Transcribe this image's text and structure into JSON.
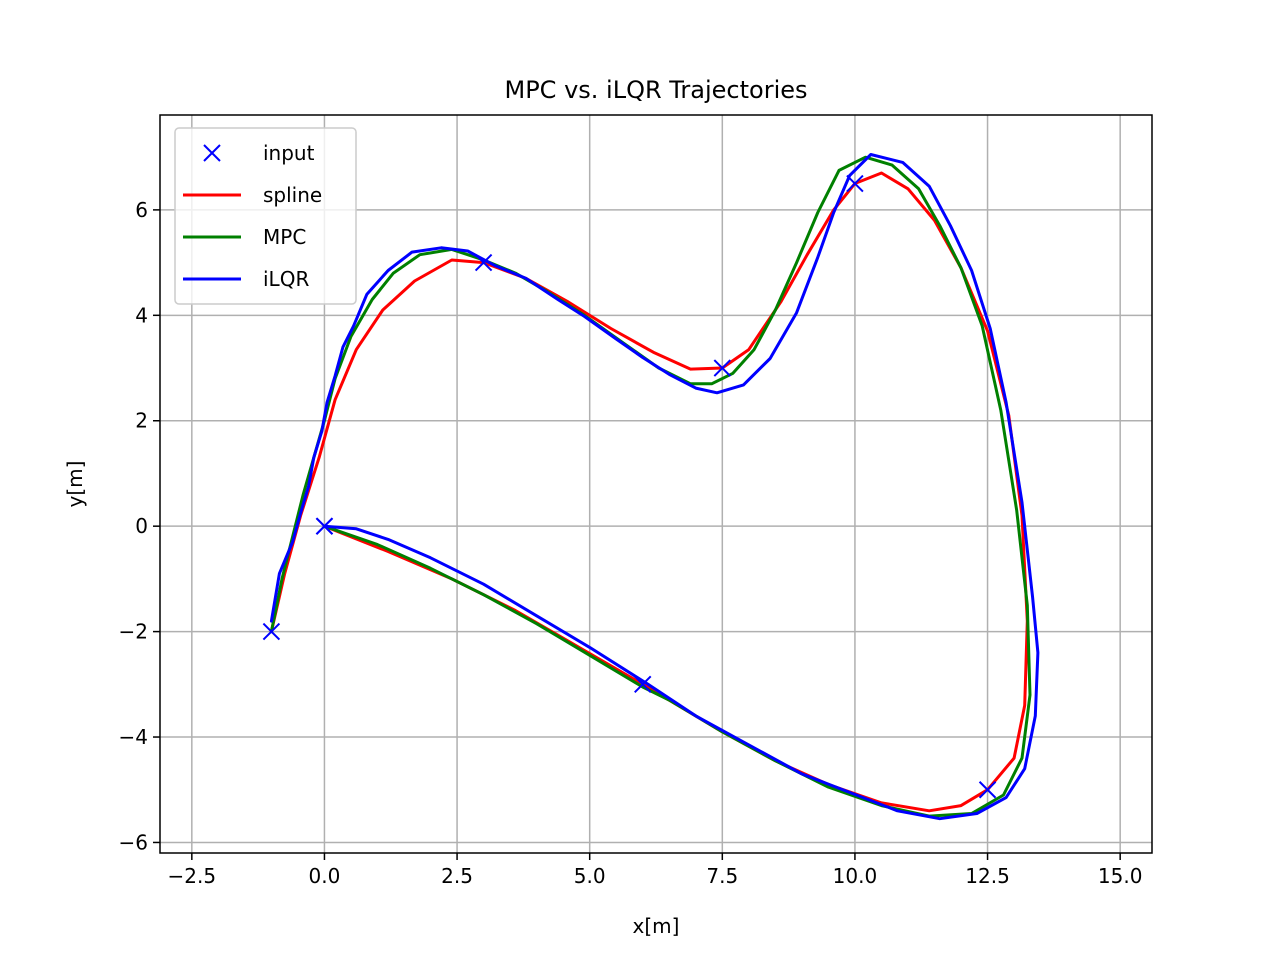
{
  "chart_data": {
    "type": "line",
    "title": "MPC vs. iLQR Trajectories",
    "xlabel": "x[m]",
    "ylabel": "y[m]",
    "xlim": [
      -3.1,
      15.6
    ],
    "ylim": [
      -6.2,
      7.8
    ],
    "xticks": [
      -2.5,
      0.0,
      2.5,
      5.0,
      7.5,
      10.0,
      12.5,
      15.0
    ],
    "xtick_labels": [
      "−2.5",
      "0.0",
      "2.5",
      "5.0",
      "7.5",
      "10.0",
      "12.5",
      "15.0"
    ],
    "yticks": [
      -6,
      -4,
      -2,
      0,
      2,
      4,
      6
    ],
    "ytick_labels": [
      "−6",
      "−4",
      "−2",
      "0",
      "2",
      "4",
      "6"
    ],
    "grid": true,
    "legend_position": "upper-left",
    "series": [
      {
        "name": "input",
        "style": "markers",
        "marker": "x",
        "color": "#0000ff",
        "points": [
          [
            -1.0,
            -2.0
          ],
          [
            0.0,
            0.0
          ],
          [
            3.0,
            5.0
          ],
          [
            7.5,
            3.0
          ],
          [
            10.0,
            6.5
          ],
          [
            12.5,
            -5.0
          ],
          [
            6.0,
            -3.0
          ],
          [
            0.0,
            0.0
          ]
        ]
      },
      {
        "name": "spline",
        "style": "line",
        "color": "#ff0000",
        "points": [
          [
            -1.0,
            -2.0
          ],
          [
            -0.75,
            -0.9
          ],
          [
            -0.45,
            0.2
          ],
          [
            -0.1,
            1.3
          ],
          [
            0.2,
            2.4
          ],
          [
            0.6,
            3.35
          ],
          [
            1.1,
            4.1
          ],
          [
            1.7,
            4.65
          ],
          [
            2.4,
            5.05
          ],
          [
            3.0,
            5.0
          ],
          [
            3.8,
            4.7
          ],
          [
            4.6,
            4.25
          ],
          [
            5.4,
            3.75
          ],
          [
            6.2,
            3.3
          ],
          [
            6.9,
            2.98
          ],
          [
            7.5,
            3.0
          ],
          [
            8.0,
            3.35
          ],
          [
            8.6,
            4.25
          ],
          [
            9.1,
            5.15
          ],
          [
            9.6,
            6.0
          ],
          [
            10.0,
            6.5
          ],
          [
            10.5,
            6.7
          ],
          [
            11.0,
            6.4
          ],
          [
            11.5,
            5.8
          ],
          [
            12.0,
            4.9
          ],
          [
            12.5,
            3.7
          ],
          [
            12.9,
            2.1
          ],
          [
            13.15,
            0.2
          ],
          [
            13.25,
            -1.8
          ],
          [
            13.2,
            -3.4
          ],
          [
            13.0,
            -4.4
          ],
          [
            12.5,
            -5.0
          ],
          [
            12.0,
            -5.3
          ],
          [
            11.4,
            -5.4
          ],
          [
            10.5,
            -5.25
          ],
          [
            9.5,
            -4.9
          ],
          [
            8.5,
            -4.45
          ],
          [
            7.5,
            -3.9
          ],
          [
            6.0,
            -3.0
          ],
          [
            4.8,
            -2.3
          ],
          [
            3.6,
            -1.6
          ],
          [
            2.4,
            -1.0
          ],
          [
            1.2,
            -0.48
          ],
          [
            0.0,
            0.0
          ]
        ]
      },
      {
        "name": "MPC",
        "style": "line",
        "color": "#008000",
        "points": [
          [
            -1.0,
            -2.0
          ],
          [
            -0.8,
            -1.0
          ],
          [
            -0.6,
            -0.2
          ],
          [
            -0.4,
            0.6
          ],
          [
            -0.2,
            1.3
          ],
          [
            0.0,
            2.0
          ],
          [
            0.2,
            2.8
          ],
          [
            0.5,
            3.6
          ],
          [
            0.9,
            4.3
          ],
          [
            1.3,
            4.8
          ],
          [
            1.8,
            5.15
          ],
          [
            2.4,
            5.25
          ],
          [
            3.0,
            5.05
          ],
          [
            3.6,
            4.8
          ],
          [
            4.2,
            4.45
          ],
          [
            4.9,
            4.0
          ],
          [
            5.6,
            3.5
          ],
          [
            6.3,
            3.0
          ],
          [
            6.9,
            2.7
          ],
          [
            7.3,
            2.7
          ],
          [
            7.7,
            2.9
          ],
          [
            8.1,
            3.35
          ],
          [
            8.5,
            4.1
          ],
          [
            8.9,
            5.0
          ],
          [
            9.3,
            5.95
          ],
          [
            9.7,
            6.75
          ],
          [
            10.2,
            7.0
          ],
          [
            10.7,
            6.85
          ],
          [
            11.2,
            6.4
          ],
          [
            11.6,
            5.7
          ],
          [
            12.0,
            4.9
          ],
          [
            12.4,
            3.8
          ],
          [
            12.75,
            2.2
          ],
          [
            13.05,
            0.3
          ],
          [
            13.25,
            -1.5
          ],
          [
            13.3,
            -3.2
          ],
          [
            13.15,
            -4.4
          ],
          [
            12.8,
            -5.1
          ],
          [
            12.2,
            -5.45
          ],
          [
            11.4,
            -5.5
          ],
          [
            10.5,
            -5.3
          ],
          [
            9.5,
            -4.95
          ],
          [
            8.5,
            -4.45
          ],
          [
            7.5,
            -3.9
          ],
          [
            6.5,
            -3.3
          ],
          [
            6.0,
            -3.05
          ],
          [
            5.0,
            -2.45
          ],
          [
            4.0,
            -1.85
          ],
          [
            3.0,
            -1.3
          ],
          [
            2.0,
            -0.8
          ],
          [
            1.0,
            -0.35
          ],
          [
            0.0,
            0.0
          ]
        ]
      },
      {
        "name": "iLQR",
        "style": "line",
        "color": "#0000ff",
        "points": [
          [
            -1.0,
            -1.8
          ],
          [
            -0.85,
            -0.9
          ],
          [
            -0.6,
            -0.3
          ],
          [
            -0.45,
            0.25
          ],
          [
            -0.3,
            0.75
          ],
          [
            -0.2,
            1.3
          ],
          [
            -0.05,
            1.8
          ],
          [
            0.05,
            2.35
          ],
          [
            0.2,
            2.85
          ],
          [
            0.35,
            3.4
          ],
          [
            0.55,
            3.8
          ],
          [
            0.8,
            4.4
          ],
          [
            1.2,
            4.85
          ],
          [
            1.65,
            5.2
          ],
          [
            2.2,
            5.28
          ],
          [
            2.7,
            5.22
          ],
          [
            3.2,
            4.95
          ],
          [
            3.8,
            4.7
          ],
          [
            4.4,
            4.3
          ],
          [
            4.9,
            3.98
          ],
          [
            5.5,
            3.55
          ],
          [
            6.0,
            3.2
          ],
          [
            6.5,
            2.88
          ],
          [
            7.0,
            2.62
          ],
          [
            7.4,
            2.53
          ],
          [
            7.9,
            2.68
          ],
          [
            8.4,
            3.18
          ],
          [
            8.9,
            4.05
          ],
          [
            9.3,
            5.1
          ],
          [
            9.6,
            5.95
          ],
          [
            9.9,
            6.65
          ],
          [
            10.3,
            7.05
          ],
          [
            10.9,
            6.9
          ],
          [
            11.4,
            6.45
          ],
          [
            11.8,
            5.7
          ],
          [
            12.2,
            4.85
          ],
          [
            12.55,
            3.75
          ],
          [
            12.85,
            2.35
          ],
          [
            13.15,
            0.45
          ],
          [
            13.35,
            -1.35
          ],
          [
            13.45,
            -2.4
          ],
          [
            13.4,
            -3.6
          ],
          [
            13.2,
            -4.6
          ],
          [
            12.85,
            -5.15
          ],
          [
            12.3,
            -5.45
          ],
          [
            11.6,
            -5.55
          ],
          [
            10.8,
            -5.4
          ],
          [
            9.9,
            -5.05
          ],
          [
            9.0,
            -4.7
          ],
          [
            8.0,
            -4.15
          ],
          [
            7.0,
            -3.6
          ],
          [
            6.1,
            -3.0
          ],
          [
            5.0,
            -2.3
          ],
          [
            4.0,
            -1.7
          ],
          [
            3.0,
            -1.1
          ],
          [
            2.0,
            -0.6
          ],
          [
            1.2,
            -0.25
          ],
          [
            0.6,
            -0.05
          ],
          [
            0.0,
            0.0
          ]
        ]
      }
    ]
  }
}
